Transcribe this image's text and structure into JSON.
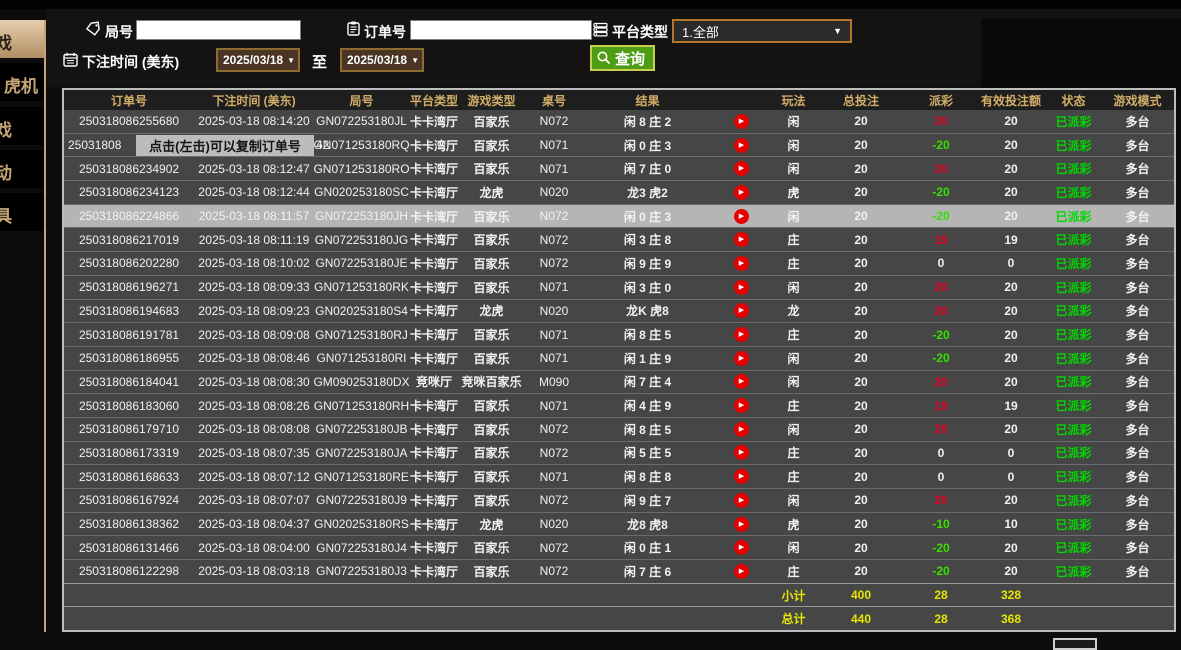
{
  "sidebar": {
    "items": [
      {
        "label_fragment": "戏",
        "selected": true
      },
      {
        "label_fragment": "虎机",
        "selected": false
      },
      {
        "label_fragment": "戏",
        "selected": false
      },
      {
        "label_fragment": "动",
        "selected": false
      },
      {
        "label_fragment": "具",
        "selected": false
      }
    ]
  },
  "filters": {
    "game_no_label": "局号",
    "game_no_value": "",
    "order_no_label": "订单号",
    "order_no_value": "",
    "platform_label": "平台类型",
    "platform_value": "1.全部",
    "bet_time_label": "下注时间 (美东)",
    "date_from": "2025/03/18",
    "to_label": "至",
    "date_to": "2025/03/18",
    "query_label": "查询"
  },
  "tooltip": {
    "text": "点击(左击)可以复制订单号",
    "suffix": "42"
  },
  "table": {
    "headers": [
      "订单号",
      "下注时间 (美东)",
      "局号",
      "平台类型",
      "游戏类型",
      "桌号",
      "结果",
      "",
      "玩法",
      "总投注",
      "派彩",
      "有效投注额",
      "状态",
      "游戏模式"
    ],
    "rows": [
      {
        "order": "250318086255680",
        "time": "2025-03-18 08:14:20",
        "game_no": "GN072253180JL",
        "platform": "卡卡湾厅",
        "game_type": "百家乐",
        "table_no": "N072",
        "result": "闲 8 庄 2",
        "play": "闲",
        "total_bet": "20",
        "payout": "20",
        "valid_bet": "20",
        "status": "已派彩",
        "mode": "多台"
      },
      {
        "order": "25031808",
        "time": "",
        "game_no": "GN071253180RQ",
        "platform": "卡卡湾厅",
        "game_type": "百家乐",
        "table_no": "N071",
        "result": "闲 0 庄 3",
        "play": "闲",
        "total_bet": "20",
        "payout": "-20",
        "valid_bet": "20",
        "status": "已派彩",
        "mode": "多台",
        "tooltip": true
      },
      {
        "order": "250318086234902",
        "time": "2025-03-18 08:12:47",
        "game_no": "GN071253180RO",
        "platform": "卡卡湾厅",
        "game_type": "百家乐",
        "table_no": "N071",
        "result": "闲 7 庄 0",
        "play": "闲",
        "total_bet": "20",
        "payout": "20",
        "valid_bet": "20",
        "status": "已派彩",
        "mode": "多台"
      },
      {
        "order": "250318086234123",
        "time": "2025-03-18 08:12:44",
        "game_no": "GN020253180SC",
        "platform": "卡卡湾厅",
        "game_type": "龙虎",
        "table_no": "N020",
        "result": "龙3 虎2",
        "play": "虎",
        "total_bet": "20",
        "payout": "-20",
        "valid_bet": "20",
        "status": "已派彩",
        "mode": "多台"
      },
      {
        "order": "250318086224866",
        "time": "2025-03-18 08:11:57",
        "game_no": "GN072253180JH",
        "platform": "卡卡湾厅",
        "game_type": "百家乐",
        "table_no": "N072",
        "result": "闲 0 庄 3",
        "play": "闲",
        "total_bet": "20",
        "payout": "-20",
        "valid_bet": "20",
        "status": "已派彩",
        "mode": "多台",
        "highlighted": true
      },
      {
        "order": "250318086217019",
        "time": "2025-03-18 08:11:19",
        "game_no": "GN072253180JG",
        "platform": "卡卡湾厅",
        "game_type": "百家乐",
        "table_no": "N072",
        "result": "闲 3 庄 8",
        "play": "庄",
        "total_bet": "20",
        "payout": "19",
        "valid_bet": "19",
        "status": "已派彩",
        "mode": "多台"
      },
      {
        "order": "250318086202280",
        "time": "2025-03-18 08:10:02",
        "game_no": "GN072253180JE",
        "platform": "卡卡湾厅",
        "game_type": "百家乐",
        "table_no": "N072",
        "result": "闲 9 庄 9",
        "play": "庄",
        "total_bet": "20",
        "payout": "0",
        "valid_bet": "0",
        "status": "已派彩",
        "mode": "多台"
      },
      {
        "order": "250318086196271",
        "time": "2025-03-18 08:09:33",
        "game_no": "GN071253180RK",
        "platform": "卡卡湾厅",
        "game_type": "百家乐",
        "table_no": "N071",
        "result": "闲 3 庄 0",
        "play": "闲",
        "total_bet": "20",
        "payout": "20",
        "valid_bet": "20",
        "status": "已派彩",
        "mode": "多台"
      },
      {
        "order": "250318086194683",
        "time": "2025-03-18 08:09:23",
        "game_no": "GN020253180S4",
        "platform": "卡卡湾厅",
        "game_type": "龙虎",
        "table_no": "N020",
        "result": "龙K 虎8",
        "play": "龙",
        "total_bet": "20",
        "payout": "20",
        "valid_bet": "20",
        "status": "已派彩",
        "mode": "多台"
      },
      {
        "order": "250318086191781",
        "time": "2025-03-18 08:09:08",
        "game_no": "GN071253180RJ",
        "platform": "卡卡湾厅",
        "game_type": "百家乐",
        "table_no": "N071",
        "result": "闲 8 庄 5",
        "play": "庄",
        "total_bet": "20",
        "payout": "-20",
        "valid_bet": "20",
        "status": "已派彩",
        "mode": "多台"
      },
      {
        "order": "250318086186955",
        "time": "2025-03-18 08:08:46",
        "game_no": "GN071253180RI",
        "platform": "卡卡湾厅",
        "game_type": "百家乐",
        "table_no": "N071",
        "result": "闲 1 庄 9",
        "play": "闲",
        "total_bet": "20",
        "payout": "-20",
        "valid_bet": "20",
        "status": "已派彩",
        "mode": "多台"
      },
      {
        "order": "250318086184041",
        "time": "2025-03-18 08:08:30",
        "game_no": "GM090253180DX",
        "platform": "竞咪厅",
        "game_type": "竞咪百家乐",
        "table_no": "M090",
        "result": "闲 7 庄 4",
        "play": "闲",
        "total_bet": "20",
        "payout": "20",
        "valid_bet": "20",
        "status": "已派彩",
        "mode": "多台"
      },
      {
        "order": "250318086183060",
        "time": "2025-03-18 08:08:26",
        "game_no": "GN071253180RH",
        "platform": "卡卡湾厅",
        "game_type": "百家乐",
        "table_no": "N071",
        "result": "闲 4 庄 9",
        "play": "庄",
        "total_bet": "20",
        "payout": "19",
        "valid_bet": "19",
        "status": "已派彩",
        "mode": "多台"
      },
      {
        "order": "250318086179710",
        "time": "2025-03-18 08:08:08",
        "game_no": "GN072253180JB",
        "platform": "卡卡湾厅",
        "game_type": "百家乐",
        "table_no": "N072",
        "result": "闲 8 庄 5",
        "play": "闲",
        "total_bet": "20",
        "payout": "20",
        "valid_bet": "20",
        "status": "已派彩",
        "mode": "多台"
      },
      {
        "order": "250318086173319",
        "time": "2025-03-18 08:07:35",
        "game_no": "GN072253180JA",
        "platform": "卡卡湾厅",
        "game_type": "百家乐",
        "table_no": "N072",
        "result": "闲 5 庄 5",
        "play": "庄",
        "total_bet": "20",
        "payout": "0",
        "valid_bet": "0",
        "status": "已派彩",
        "mode": "多台"
      },
      {
        "order": "250318086168633",
        "time": "2025-03-18 08:07:12",
        "game_no": "GN071253180RE",
        "platform": "卡卡湾厅",
        "game_type": "百家乐",
        "table_no": "N071",
        "result": "闲 8 庄 8",
        "play": "庄",
        "total_bet": "20",
        "payout": "0",
        "valid_bet": "0",
        "status": "已派彩",
        "mode": "多台"
      },
      {
        "order": "250318086167924",
        "time": "2025-03-18 08:07:07",
        "game_no": "GN072253180J9",
        "platform": "卡卡湾厅",
        "game_type": "百家乐",
        "table_no": "N072",
        "result": "闲 9 庄 7",
        "play": "闲",
        "total_bet": "20",
        "payout": "20",
        "valid_bet": "20",
        "status": "已派彩",
        "mode": "多台"
      },
      {
        "order": "250318086138362",
        "time": "2025-03-18 08:04:37",
        "game_no": "GN020253180RS",
        "platform": "卡卡湾厅",
        "game_type": "龙虎",
        "table_no": "N020",
        "result": "龙8 虎8",
        "play": "虎",
        "total_bet": "20",
        "payout": "-10",
        "valid_bet": "10",
        "status": "已派彩",
        "mode": "多台"
      },
      {
        "order": "250318086131466",
        "time": "2025-03-18 08:04:00",
        "game_no": "GN072253180J4",
        "platform": "卡卡湾厅",
        "game_type": "百家乐",
        "table_no": "N072",
        "result": "闲 0 庄 1",
        "play": "闲",
        "total_bet": "20",
        "payout": "-20",
        "valid_bet": "20",
        "status": "已派彩",
        "mode": "多台"
      },
      {
        "order": "250318086122298",
        "time": "2025-03-18 08:03:18",
        "game_no": "GN072253180J3",
        "platform": "卡卡湾厅",
        "game_type": "百家乐",
        "table_no": "N072",
        "result": "闲 7 庄 6",
        "play": "庄",
        "total_bet": "20",
        "payout": "-20",
        "valid_bet": "20",
        "status": "已派彩",
        "mode": "多台"
      }
    ],
    "subtotal": {
      "label": "小计",
      "total_bet": "400",
      "payout": "28",
      "valid_bet": "328"
    },
    "total": {
      "label": "总计",
      "total_bet": "440",
      "payout": "28",
      "valid_bet": "368"
    }
  },
  "colors": {
    "header_text": "#d2ad68",
    "payout_positive": "#e00024",
    "payout_negative": "#35e000",
    "status_green": "#00d800",
    "totals_yellow": "#e6e600",
    "row_bg": "#464646",
    "highlight_bg": "#b5b5b5",
    "accent_border": "#b4762a",
    "query_green": "#4f9d15",
    "sidebar_tan": "#c3a078"
  }
}
